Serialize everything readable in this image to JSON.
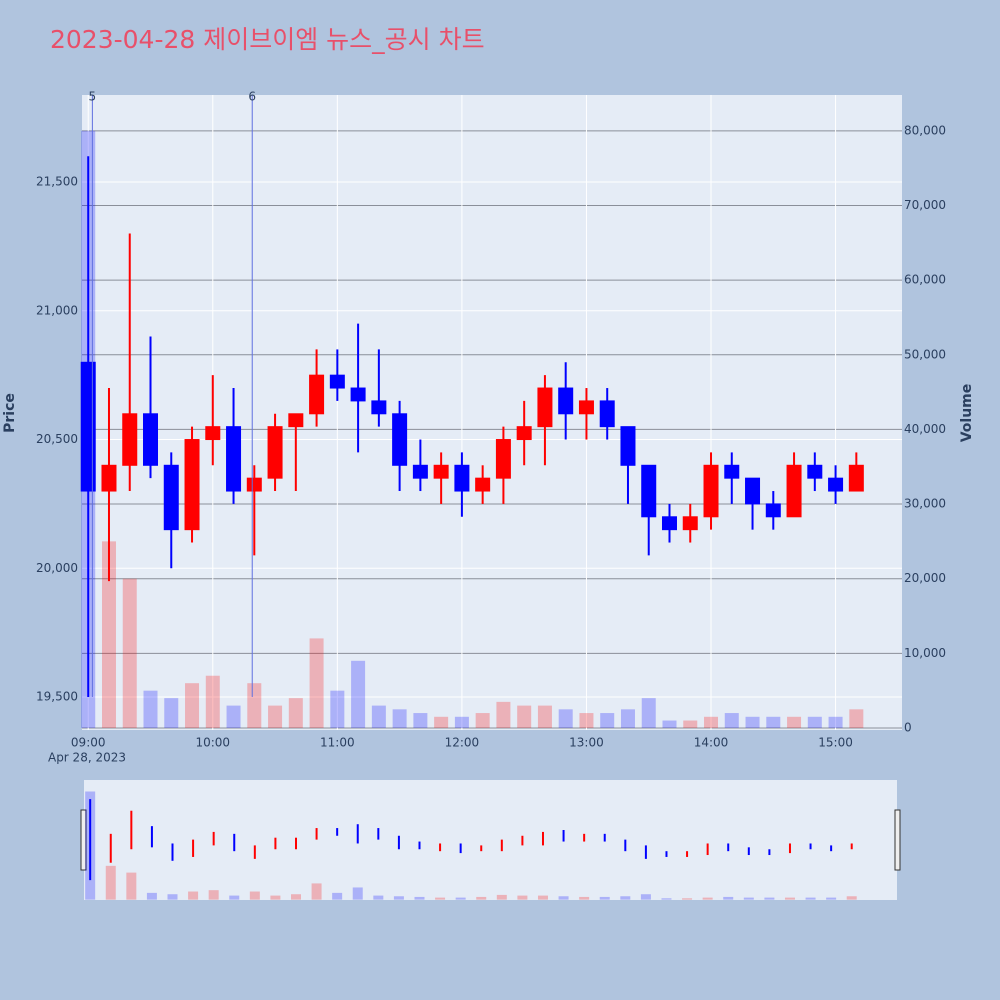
{
  "chart_data": {
    "type": "candlestick",
    "title": "2023-04-28 제이브이엠 뉴스_공시 차트",
    "y_title": "Price",
    "y2_title": "Volume",
    "x_date_label": "Apr 28, 2023",
    "x": [
      "2023-04-28 09:00",
      "2023-04-28 09:10",
      "2023-04-28 09:20",
      "2023-04-28 09:30",
      "2023-04-28 09:40",
      "2023-04-28 09:50",
      "2023-04-28 10:00",
      "2023-04-28 10:10",
      "2023-04-28 10:20",
      "2023-04-28 10:30",
      "2023-04-28 10:40",
      "2023-04-28 10:50",
      "2023-04-28 11:00",
      "2023-04-28 11:10",
      "2023-04-28 11:20",
      "2023-04-28 11:30",
      "2023-04-28 11:40",
      "2023-04-28 11:50",
      "2023-04-28 12:00",
      "2023-04-28 12:10",
      "2023-04-28 12:20",
      "2023-04-28 12:30",
      "2023-04-28 12:40",
      "2023-04-28 12:50",
      "2023-04-28 13:00",
      "2023-04-28 13:10",
      "2023-04-28 13:20",
      "2023-04-28 13:30",
      "2023-04-28 13:40",
      "2023-04-28 13:50",
      "2023-04-28 14:00",
      "2023-04-28 14:10",
      "2023-04-28 14:20",
      "2023-04-28 14:30",
      "2023-04-28 14:40",
      "2023-04-28 14:50",
      "2023-04-28 15:00",
      "2023-04-28 15:10"
    ],
    "open": [
      20800,
      20300,
      20400,
      20600,
      20400,
      20150,
      20500,
      20550,
      20300,
      20350,
      20550,
      20600,
      20750,
      20700,
      20650,
      20600,
      20400,
      20350,
      20400,
      20300,
      20350,
      20500,
      20550,
      20700,
      20600,
      20650,
      20550,
      20400,
      20200,
      20150,
      20200,
      20400,
      20350,
      20250,
      20200,
      20400,
      20350,
      20300
    ],
    "high": [
      21600,
      20700,
      21300,
      20900,
      20450,
      20550,
      20750,
      20700,
      20400,
      20600,
      20600,
      20850,
      20850,
      20950,
      20850,
      20650,
      20500,
      20450,
      20450,
      20400,
      20550,
      20650,
      20750,
      20800,
      20700,
      20700,
      20550,
      20400,
      20250,
      20250,
      20450,
      20450,
      20350,
      20300,
      20450,
      20450,
      20400,
      20450
    ],
    "low": [
      19500,
      19950,
      20300,
      20350,
      20000,
      20100,
      20400,
      20250,
      20050,
      20300,
      20300,
      20550,
      20650,
      20450,
      20550,
      20300,
      20300,
      20250,
      20200,
      20250,
      20250,
      20400,
      20400,
      20500,
      20500,
      20500,
      20250,
      20050,
      20100,
      20100,
      20150,
      20250,
      20150,
      20150,
      20200,
      20300,
      20250,
      20300
    ],
    "close": [
      20300,
      20400,
      20600,
      20400,
      20150,
      20500,
      20550,
      20300,
      20350,
      20550,
      20600,
      20750,
      20700,
      20650,
      20600,
      20400,
      20350,
      20400,
      20300,
      20350,
      20500,
      20550,
      20700,
      20600,
      20650,
      20550,
      20400,
      20200,
      20150,
      20200,
      20400,
      20350,
      20250,
      20200,
      20400,
      20350,
      20300,
      20400
    ],
    "volume": [
      80000,
      25000,
      20000,
      5000,
      4000,
      6000,
      7000,
      3000,
      6000,
      3000,
      4000,
      12000,
      5000,
      9000,
      3000,
      2500,
      2000,
      1500,
      1500,
      2000,
      3500,
      3000,
      3000,
      2500,
      2000,
      2000,
      2500,
      4000,
      1000,
      1000,
      1500,
      2000,
      1500,
      1500,
      1500,
      1500,
      1500,
      2500
    ],
    "increasing_color": "#ff0000",
    "decreasing_color": "#0000ff",
    "events": [
      {
        "x": "2023-04-28 09:02",
        "label": "5"
      },
      {
        "x": "2023-04-28 10:19",
        "label": "6"
      }
    ],
    "xlim": [
      "2023-04-28 08:57",
      "2023-04-28 15:32"
    ],
    "xticks": [
      {
        "value": "2023-04-28 09:00",
        "label": "09:00"
      },
      {
        "value": "2023-04-28 10:00",
        "label": "10:00"
      },
      {
        "value": "2023-04-28 11:00",
        "label": "11:00"
      },
      {
        "value": "2023-04-28 12:00",
        "label": "12:00"
      },
      {
        "value": "2023-04-28 13:00",
        "label": "13:00"
      },
      {
        "value": "2023-04-28 14:00",
        "label": "14:00"
      },
      {
        "value": "2023-04-28 15:00",
        "label": "15:00"
      }
    ],
    "ylim": [
      19372,
      21838
    ],
    "yticks": [
      {
        "value": 19500,
        "label": "19,500"
      },
      {
        "value": 20000,
        "label": "20,000"
      },
      {
        "value": 20500,
        "label": "20,500"
      },
      {
        "value": 21000,
        "label": "21,000"
      },
      {
        "value": 21500,
        "label": "21,500"
      }
    ],
    "y2lim": [
      -270,
      84800
    ],
    "y2ticks": [
      0,
      {
        "value": 10000,
        "label": "10,000"
      },
      {
        "value": 20000,
        "label": "20,000"
      },
      {
        "value": 30000,
        "label": "30,000"
      },
      {
        "value": 40000,
        "label": "40,000"
      },
      {
        "value": 50000,
        "label": "50,000"
      },
      {
        "value": 60000,
        "label": "60,000"
      },
      {
        "value": 70000,
        "label": "70,000"
      },
      {
        "value": 80000,
        "label": "80,000"
      }
    ],
    "grid": true
  }
}
